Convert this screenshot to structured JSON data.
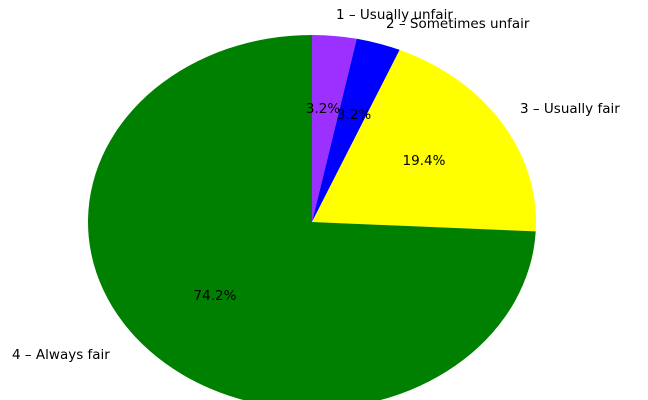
{
  "chart_data": {
    "type": "pie",
    "labels": [
      "1 – Usually unfair",
      "2 – Sometimes unfair",
      "3 – Usually fair",
      "4 – Always fair"
    ],
    "values": [
      3.2,
      3.2,
      19.4,
      74.2
    ],
    "value_labels": [
      "3.2%",
      "3.2%",
      "19.4%",
      "74.2%"
    ],
    "colors": [
      "#9b30ff",
      "#0000ff",
      "#ffff00",
      "#008000"
    ],
    "start_angle_deg": 90,
    "direction": "clockwise"
  }
}
